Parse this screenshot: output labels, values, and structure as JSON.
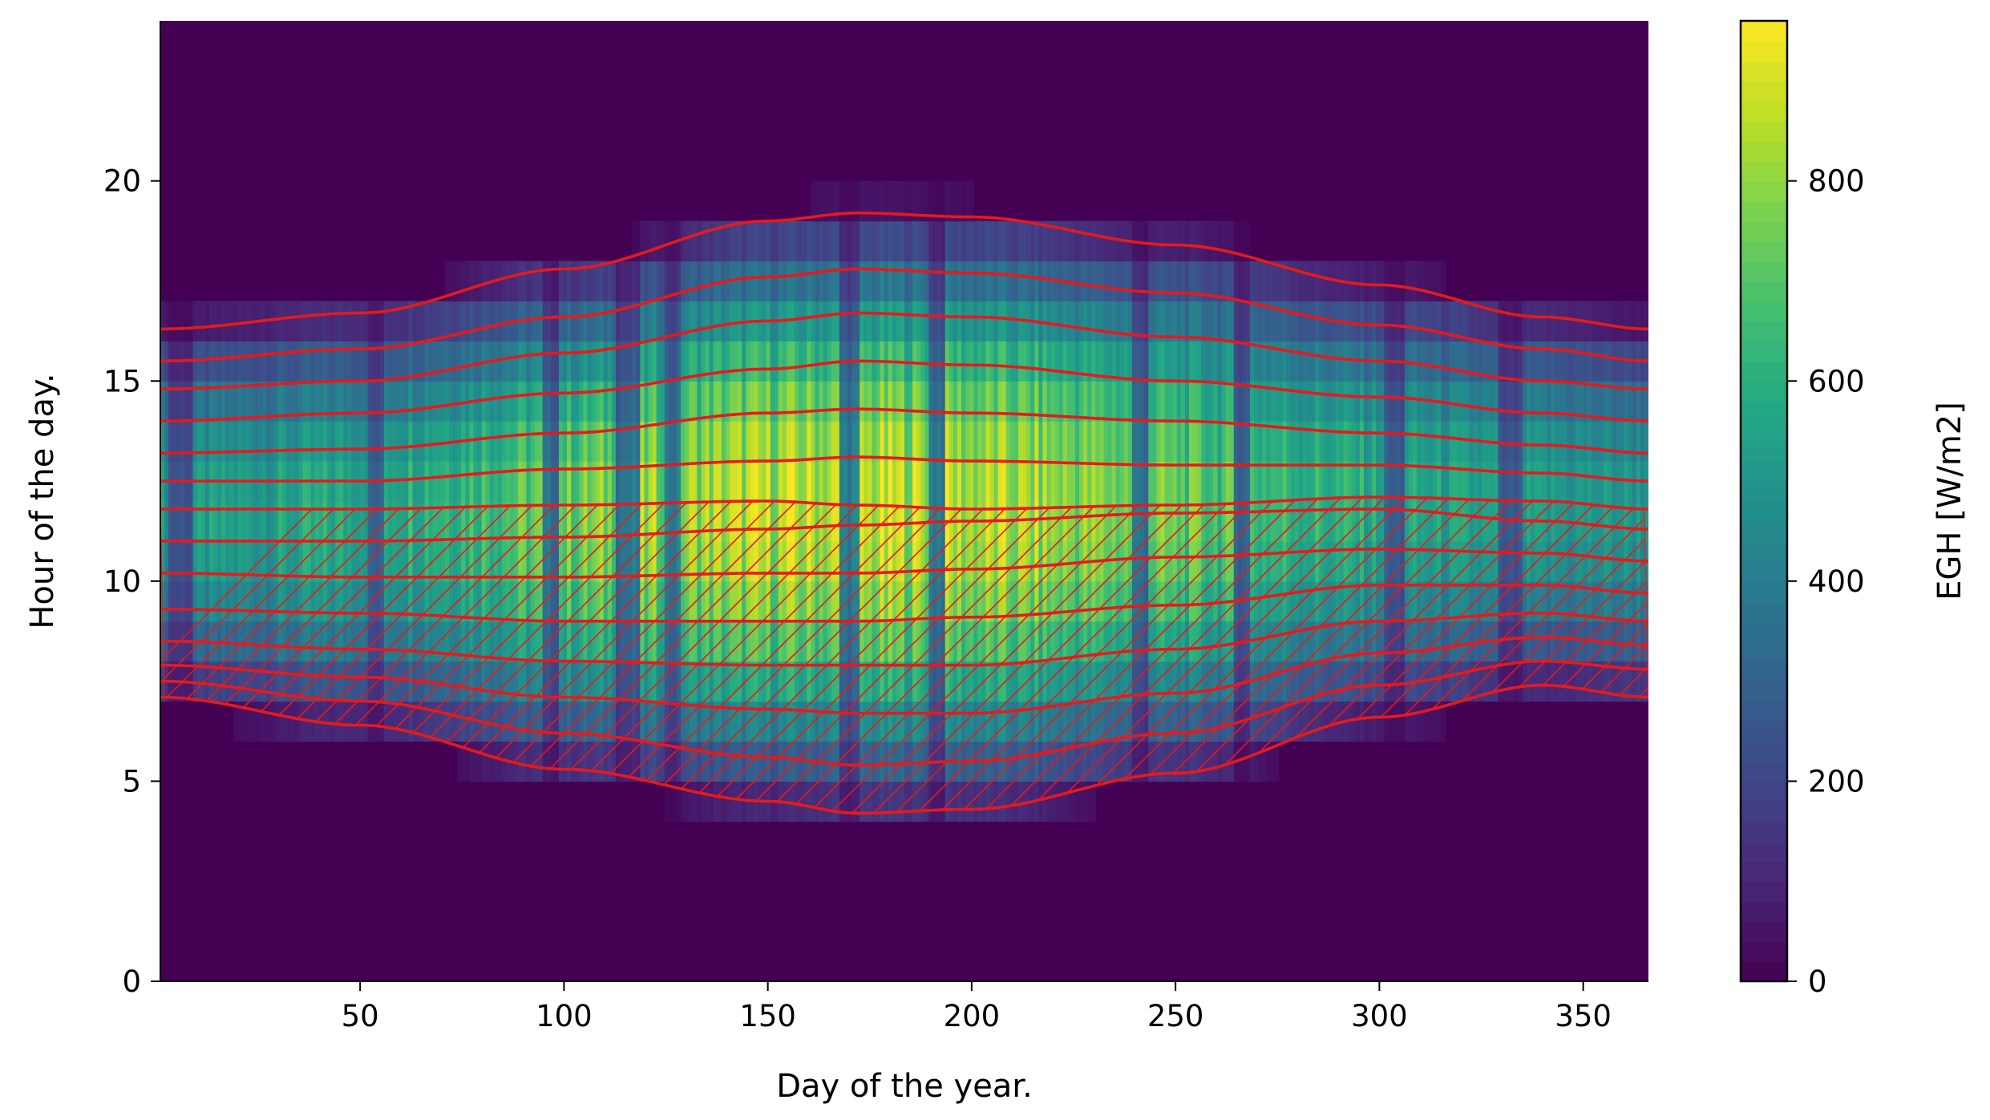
{
  "chart_data": {
    "type": "heatmap",
    "title": "",
    "xlabel": "Day of the year.",
    "ylabel": "Hour of the day.",
    "xlim": [
      1,
      366
    ],
    "ylim": [
      0,
      24
    ],
    "x_ticks": [
      50,
      100,
      150,
      200,
      250,
      300,
      350
    ],
    "y_ticks": [
      0,
      5,
      10,
      15,
      20
    ],
    "colormap": "viridis",
    "colorbar": {
      "label": "EGH [W/m2]",
      "range": [
        0,
        960
      ],
      "ticks": [
        0,
        200,
        400,
        600,
        800
      ]
    },
    "overlay": {
      "line_color": "#e8191b",
      "hatch_color": "#e8191b",
      "hatched_region": "morning band between the lowest curve and hour ~11.8",
      "curves": [
        {
          "values_at_days": {
            "1": 7.1,
            "50": 6.4,
            "100": 5.3,
            "150": 4.5,
            "172": 4.2,
            "200": 4.3,
            "250": 5.2,
            "300": 6.6,
            "340": 7.4,
            "366": 7.1
          }
        },
        {
          "values_at_days": {
            "1": 7.5,
            "50": 7.0,
            "100": 6.2,
            "150": 5.6,
            "172": 5.4,
            "200": 5.5,
            "250": 6.2,
            "300": 7.4,
            "340": 8.0,
            "366": 7.8
          }
        },
        {
          "values_at_days": {
            "1": 7.9,
            "50": 7.6,
            "100": 7.1,
            "150": 6.8,
            "172": 6.7,
            "200": 6.7,
            "250": 7.2,
            "300": 8.2,
            "340": 8.6,
            "366": 8.4
          }
        },
        {
          "values_at_days": {
            "1": 8.5,
            "50": 8.3,
            "100": 8.0,
            "150": 7.9,
            "172": 7.9,
            "200": 7.9,
            "250": 8.3,
            "300": 9.0,
            "340": 9.2,
            "366": 9.0
          }
        },
        {
          "values_at_days": {
            "1": 9.3,
            "50": 9.2,
            "100": 9.0,
            "150": 9.0,
            "172": 9.0,
            "200": 9.1,
            "250": 9.4,
            "300": 9.9,
            "340": 9.9,
            "366": 9.7
          }
        },
        {
          "values_at_days": {
            "1": 10.2,
            "50": 10.1,
            "100": 10.1,
            "150": 10.2,
            "172": 10.2,
            "200": 10.3,
            "250": 10.6,
            "300": 10.8,
            "340": 10.7,
            "366": 10.5
          }
        },
        {
          "values_at_days": {
            "1": 11.0,
            "50": 11.0,
            "100": 11.1,
            "150": 11.3,
            "172": 11.4,
            "200": 11.5,
            "250": 11.7,
            "300": 11.8,
            "340": 11.5,
            "366": 11.3
          }
        },
        {
          "values_at_days": {
            "1": 11.8,
            "50": 11.8,
            "100": 11.9,
            "150": 12.0,
            "172": 11.9,
            "200": 11.8,
            "250": 11.9,
            "300": 12.1,
            "340": 12.0,
            "366": 11.8
          }
        },
        {
          "values_at_days": {
            "1": 12.5,
            "50": 12.5,
            "100": 12.8,
            "150": 13.0,
            "172": 13.1,
            "200": 13.0,
            "250": 12.9,
            "300": 12.9,
            "340": 12.7,
            "366": 12.5
          }
        },
        {
          "values_at_days": {
            "1": 13.2,
            "50": 13.3,
            "100": 13.7,
            "150": 14.2,
            "172": 14.3,
            "200": 14.2,
            "250": 14.0,
            "300": 13.7,
            "340": 13.4,
            "366": 13.2
          }
        },
        {
          "values_at_days": {
            "1": 14.0,
            "50": 14.2,
            "100": 14.7,
            "150": 15.3,
            "172": 15.5,
            "200": 15.4,
            "250": 15.0,
            "300": 14.6,
            "340": 14.2,
            "366": 14.0
          }
        },
        {
          "values_at_days": {
            "1": 14.8,
            "50": 15.0,
            "100": 15.7,
            "150": 16.5,
            "172": 16.7,
            "200": 16.6,
            "250": 16.1,
            "300": 15.5,
            "340": 15.0,
            "366": 14.8
          }
        },
        {
          "values_at_days": {
            "1": 15.5,
            "50": 15.8,
            "100": 16.6,
            "150": 17.6,
            "172": 17.8,
            "200": 17.7,
            "250": 17.2,
            "300": 16.4,
            "340": 15.8,
            "366": 15.5
          }
        },
        {
          "values_at_days": {
            "1": 16.3,
            "50": 16.7,
            "100": 17.8,
            "150": 19.0,
            "172": 19.2,
            "200": 19.1,
            "250": 18.4,
            "300": 17.4,
            "340": 16.6,
            "366": 16.3
          }
        }
      ]
    },
    "irradiance_profile": {
      "description_units": "W/m2",
      "peak_by_season": {
        "winter": 520,
        "spring": 860,
        "summer": 950,
        "autumn": 700
      },
      "cloudy_day_ranges": [
        [
          3,
          8
        ],
        [
          52,
          55
        ],
        [
          95,
          98
        ],
        [
          113,
          118
        ],
        [
          125,
          128
        ],
        [
          168,
          172
        ],
        [
          190,
          193
        ],
        [
          240,
          243
        ],
        [
          265,
          268
        ],
        [
          302,
          306
        ],
        [
          330,
          335
        ]
      ]
    }
  }
}
